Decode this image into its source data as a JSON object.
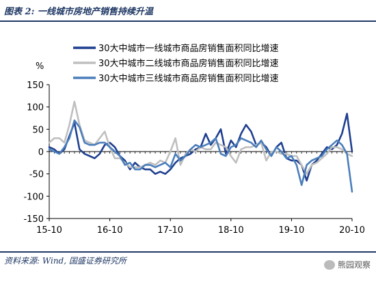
{
  "header": {
    "title": "图表 2:  一线城市房地产销售持续升温"
  },
  "footer": {
    "source": "资料来源:  Wind, 国盛证券研究所",
    "watermark": "熊园观察"
  },
  "chart_data": {
    "type": "line",
    "title": "",
    "ylabel": "%",
    "xlabel": "",
    "ylim": [
      -150,
      150
    ],
    "yticks": [
      -150,
      -100,
      -50,
      0,
      50,
      100,
      150
    ],
    "xtick_labels": [
      "15-10",
      "16-10",
      "17-10",
      "18-10",
      "19-10",
      "20-10"
    ],
    "xtick_index": [
      0,
      12,
      24,
      36,
      48,
      60
    ],
    "x": [
      "15-10",
      "15-11",
      "15-12",
      "16-01",
      "16-02",
      "16-03",
      "16-04",
      "16-05",
      "16-06",
      "16-07",
      "16-08",
      "16-09",
      "16-10",
      "16-11",
      "16-12",
      "17-01",
      "17-02",
      "17-03",
      "17-04",
      "17-05",
      "17-06",
      "17-07",
      "17-08",
      "17-09",
      "17-10",
      "17-11",
      "17-12",
      "18-01",
      "18-02",
      "18-03",
      "18-04",
      "18-05",
      "18-06",
      "18-07",
      "18-08",
      "18-09",
      "18-10",
      "18-11",
      "18-12",
      "19-01",
      "19-02",
      "19-03",
      "19-04",
      "19-05",
      "19-06",
      "19-07",
      "19-08",
      "19-09",
      "19-10",
      "19-11",
      "19-12",
      "20-01",
      "20-02",
      "20-03",
      "20-04",
      "20-05",
      "20-06",
      "20-07",
      "20-08",
      "20-09",
      "20-10"
    ],
    "legend_position": "top-right",
    "grid": false,
    "series": [
      {
        "name": "30大中城市一线城市商品房销售面积同比增速",
        "color": "#1f3f8f",
        "width": 2.6,
        "values": [
          10,
          5,
          -5,
          5,
          35,
          65,
          5,
          -5,
          -10,
          -15,
          -5,
          15,
          20,
          10,
          -10,
          -20,
          -40,
          -25,
          -35,
          -40,
          -40,
          -50,
          -45,
          -50,
          -40,
          -25,
          -15,
          -10,
          -5,
          5,
          10,
          40,
          15,
          30,
          50,
          -5,
          25,
          10,
          40,
          60,
          45,
          15,
          20,
          10,
          -10,
          10,
          20,
          -15,
          -20,
          -20,
          -30,
          -65,
          -30,
          -20,
          -5,
          10,
          5,
          15,
          40,
          85,
          0
        ]
      },
      {
        "name": "30大中城市二线城市商品房销售面积同比增速",
        "color": "#bfbfbf",
        "width": 2.6,
        "values": [
          20,
          30,
          30,
          20,
          60,
          112,
          60,
          25,
          20,
          15,
          30,
          45,
          10,
          -15,
          -15,
          -25,
          -35,
          -35,
          -35,
          -30,
          -25,
          -30,
          -20,
          -25,
          0,
          30,
          -30,
          -5,
          5,
          0,
          10,
          5,
          5,
          20,
          15,
          10,
          -10,
          -25,
          5,
          10,
          10,
          15,
          20,
          -20,
          0,
          0,
          -5,
          -5,
          -10,
          -10,
          -30,
          -50,
          -30,
          -25,
          -15,
          -5,
          10,
          10,
          5,
          -5,
          -10
        ]
      },
      {
        "name": "30大中城市三线城市商品房销售面积同比增速",
        "color": "#4a7ebb",
        "width": 2.6,
        "values": [
          5,
          0,
          -5,
          10,
          30,
          70,
          55,
          20,
          15,
          15,
          20,
          20,
          10,
          0,
          -10,
          -30,
          -25,
          -40,
          -40,
          -30,
          -30,
          -35,
          -30,
          -25,
          -35,
          -5,
          -20,
          -10,
          5,
          15,
          10,
          15,
          20,
          30,
          -5,
          -10,
          10,
          15,
          30,
          25,
          20,
          10,
          25,
          5,
          -10,
          10,
          0,
          -15,
          -10,
          -30,
          -75,
          -30,
          -20,
          -15,
          -10,
          5,
          15,
          25,
          15,
          -5,
          -90
        ]
      }
    ]
  }
}
